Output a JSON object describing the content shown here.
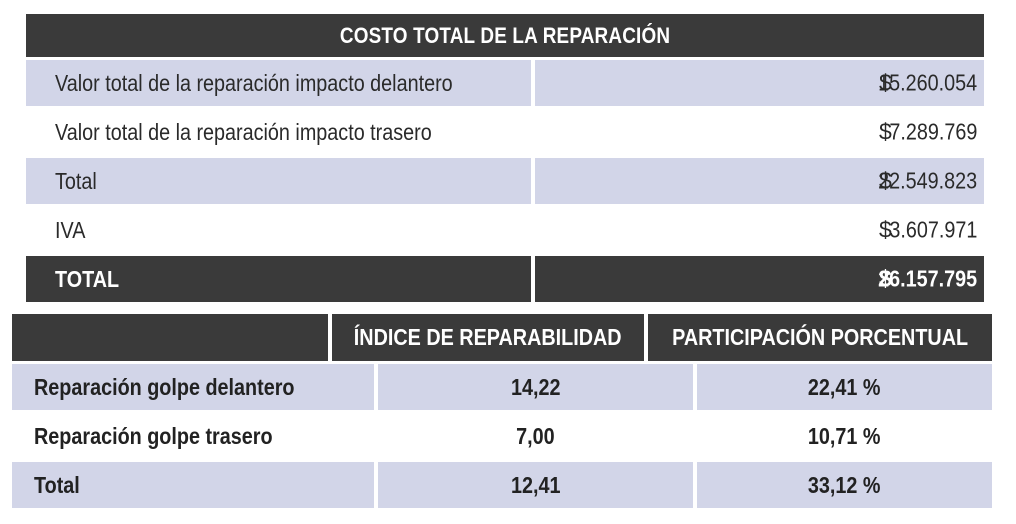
{
  "repair_cost": {
    "title": "COSTO TOTAL DE LA REPARACIÓN",
    "rows": [
      {
        "label": "Valor total de la reparación impacto delantero",
        "currency": "$",
        "value": "15.260.054"
      },
      {
        "label": "Valor total de la reparación impacto trasero",
        "currency": "$",
        "value": "7.289.769"
      },
      {
        "label": "Total",
        "currency": "$",
        "value": "22.549.823"
      },
      {
        "label": "IVA",
        "currency": "$",
        "value": "3.607.971"
      }
    ],
    "grand_total": {
      "label": "TOTAL",
      "currency": "$",
      "value": "26.157.795"
    }
  },
  "repairability": {
    "headers": [
      "",
      "ÍNDICE DE REPARABILIDAD",
      "PARTICIPACIÓN PORCENTUAL"
    ],
    "rows": [
      {
        "label": "Reparación golpe delantero",
        "index": "14,22",
        "share": "22,41 %"
      },
      {
        "label": "Reparación golpe trasero",
        "index": "7,00",
        "share": "10,71 %"
      },
      {
        "label": "Total",
        "index": "12,41",
        "share": "33,12 %"
      }
    ]
  },
  "colors": {
    "header_bg": "#3a3a3a",
    "band_bg": "#d2d5e8",
    "row_bg": "#ffffff"
  }
}
